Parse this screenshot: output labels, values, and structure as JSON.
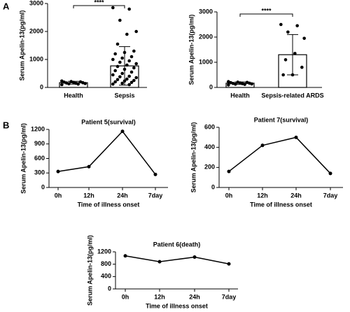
{
  "panel_labels": [
    "A",
    "B"
  ],
  "chart_data": [
    {
      "type": "bar",
      "ylabel": "Serum Apelin-13(pg/ml)",
      "categories": [
        "Health",
        "Sepsis"
      ],
      "values": [
        170,
        770
      ],
      "errors": [
        50,
        690
      ],
      "points": [
        [
          100,
          120,
          130,
          140,
          150,
          160,
          170,
          180,
          190,
          200,
          210,
          230
        ],
        [
          2850,
          2800,
          2400,
          2000,
          1900,
          1550,
          1300,
          1250,
          1200,
          1100,
          1050,
          1000,
          950,
          900,
          850,
          800,
          750,
          700,
          650,
          600,
          550,
          500,
          450,
          400,
          380,
          350,
          300,
          280,
          250,
          230,
          200,
          180,
          150,
          120,
          100
        ]
      ],
      "significance": "****",
      "ylim": [
        0,
        3000
      ],
      "yticks": [
        0,
        1000,
        2000,
        3000
      ]
    },
    {
      "type": "bar",
      "ylabel": "Serum Apelin-13(pg/ml)",
      "categories": [
        "Health",
        "Sepsis-related ARDS"
      ],
      "values": [
        170,
        1300
      ],
      "errors": [
        50,
        800
      ],
      "points": [
        [
          100,
          120,
          130,
          140,
          150,
          160,
          170,
          180,
          190,
          200,
          210,
          230
        ],
        [
          2500,
          2450,
          2200,
          1950,
          1350,
          1100,
          800,
          500,
          500
        ]
      ],
      "significance": "****",
      "ylim": [
        0,
        3000
      ],
      "yticks": [
        0,
        1000,
        2000,
        3000
      ]
    },
    {
      "type": "line",
      "title": "Patient 5(survival)",
      "ylabel": "Serum Apelin-13(pg/ml)",
      "xlabel": "Time of illness onset",
      "categories": [
        "0h",
        "12h",
        "24h",
        "7day"
      ],
      "values": [
        330,
        430,
        1160,
        270
      ],
      "ylim": [
        0,
        1200
      ],
      "yticks": [
        0,
        300,
        600,
        900,
        1200
      ]
    },
    {
      "type": "line",
      "title": "Patient 7(survival)",
      "ylabel": "Serum Apelin-13(pg/ml)",
      "xlabel": "Time of illness onset",
      "categories": [
        "0h",
        "12h",
        "24h",
        "7day"
      ],
      "values": [
        160,
        420,
        500,
        140
      ],
      "ylim": [
        0,
        600
      ],
      "yticks": [
        0,
        200,
        400,
        600
      ]
    },
    {
      "type": "line",
      "title": "Patient 6(death)",
      "ylabel": "Serum Apelin-13(pg/ml)",
      "xlabel": "Time of illness onset",
      "categories": [
        "0h",
        "12h",
        "24h",
        "7day"
      ],
      "values": [
        1070,
        880,
        1030,
        810
      ],
      "ylim": [
        0,
        1200
      ],
      "yticks": [
        0,
        400,
        800,
        1200
      ]
    }
  ]
}
